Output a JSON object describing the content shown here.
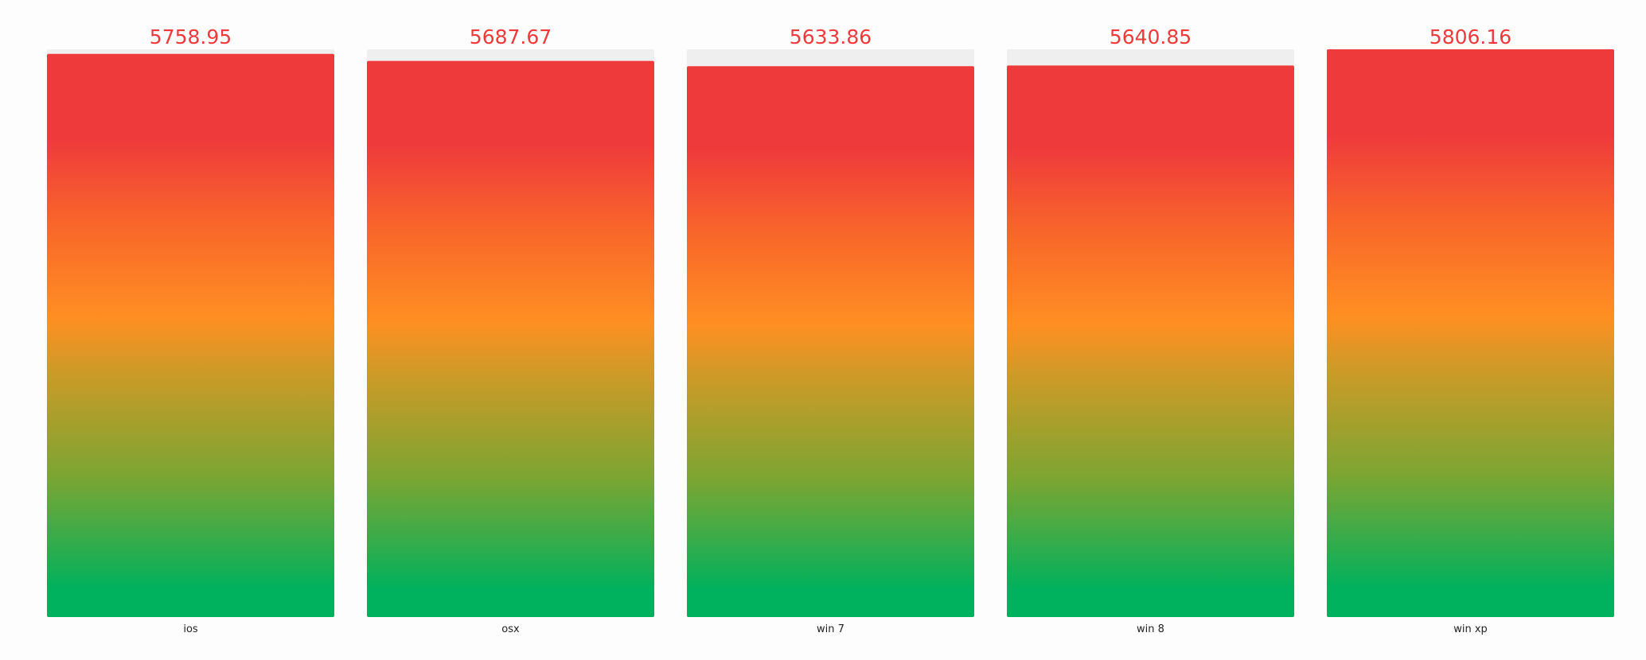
{
  "chart_data": {
    "type": "bar",
    "categories": [
      "ios",
      "osx",
      "win 7",
      "win 8",
      "win xp"
    ],
    "values": [
      5758.95,
      5687.67,
      5633.86,
      5640.85,
      5806.16
    ],
    "ylim": [
      0,
      5806.16
    ]
  }
}
